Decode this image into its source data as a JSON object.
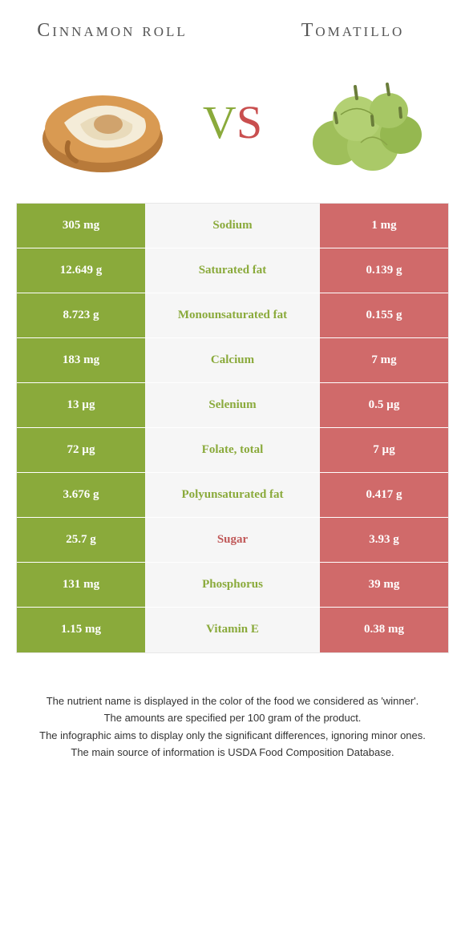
{
  "colors": {
    "left_bar": "#8aaa3b",
    "right_bar": "#d06a6a",
    "mid_bg": "#f6f6f6",
    "label_left_winner": "#8aaa3b",
    "label_right_winner": "#c05858",
    "title_text": "#555555"
  },
  "foods": {
    "left": {
      "title": "Cinnamon roll"
    },
    "right": {
      "title": "Tomatillo"
    }
  },
  "vs": {
    "v": "V",
    "s": "S"
  },
  "rows": [
    {
      "label": "Sodium",
      "left": "305 mg",
      "right": "1 mg",
      "winner": "left"
    },
    {
      "label": "Saturated fat",
      "left": "12.649 g",
      "right": "0.139 g",
      "winner": "left"
    },
    {
      "label": "Monounsaturated fat",
      "left": "8.723 g",
      "right": "0.155 g",
      "winner": "left"
    },
    {
      "label": "Calcium",
      "left": "183 mg",
      "right": "7 mg",
      "winner": "left"
    },
    {
      "label": "Selenium",
      "left": "13 µg",
      "right": "0.5 µg",
      "winner": "left"
    },
    {
      "label": "Folate, total",
      "left": "72 µg",
      "right": "7 µg",
      "winner": "left"
    },
    {
      "label": "Polyunsaturated fat",
      "left": "3.676 g",
      "right": "0.417 g",
      "winner": "left"
    },
    {
      "label": "Sugar",
      "left": "25.7 g",
      "right": "3.93 g",
      "winner": "right"
    },
    {
      "label": "Phosphorus",
      "left": "131 mg",
      "right": "39 mg",
      "winner": "left"
    },
    {
      "label": "Vitamin E",
      "left": "1.15 mg",
      "right": "0.38 mg",
      "winner": "left"
    }
  ],
  "footer": {
    "line1": "The nutrient name is displayed in the color of the food we considered as 'winner'.",
    "line2": "The amounts are specified per 100 gram of the product.",
    "line3": "The infographic aims to display only the significant differences, ignoring minor ones.",
    "line4": "The main source of information is USDA Food Composition Database."
  }
}
